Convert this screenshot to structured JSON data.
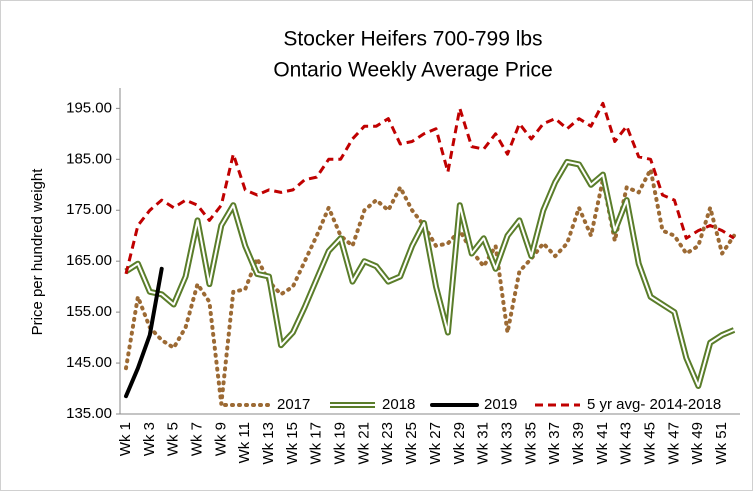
{
  "chart_data": {
    "type": "line",
    "title": "Stocker Heifers 700-799 lbs",
    "subtitle": "Ontario Weekly Average Price",
    "y_label": "Price per hundred weight",
    "categories": [
      "Wk 1",
      null,
      "Wk 3",
      null,
      "Wk 5",
      null,
      "Wk 7",
      null,
      "Wk 9",
      null,
      "Wk 11",
      null,
      "Wk 13",
      null,
      "Wk 15",
      null,
      "Wk 17",
      null,
      "Wk 19",
      null,
      "Wk 21",
      null,
      "Wk 23",
      null,
      "Wk 25",
      null,
      "Wk 27",
      null,
      "Wk 29",
      null,
      "Wk 31",
      null,
      "Wk 33",
      null,
      "Wk 35",
      null,
      "Wk 37",
      null,
      "Wk 39",
      null,
      "Wk 41",
      null,
      "Wk 43",
      null,
      "Wk 45",
      null,
      "Wk 47",
      null,
      "Wk 49",
      null,
      "Wk 51",
      null
    ],
    "series": [
      {
        "name": "2017",
        "color": "#9c6a34",
        "style": "dotted",
        "values": [
          144,
          158,
          152,
          149.5,
          148,
          152,
          160.5,
          157,
          137,
          159,
          159.5,
          165.5,
          161,
          158.5,
          160,
          165,
          170,
          175.5,
          170,
          168,
          175,
          177,
          175,
          179.5,
          175,
          172,
          168,
          168.5,
          171,
          167,
          164,
          168,
          151,
          163,
          165.5,
          168.5,
          166,
          168.5,
          175.5,
          170,
          181,
          169,
          179.5,
          178.5,
          183,
          171,
          170,
          166.5,
          168,
          175.5,
          166.5,
          170
        ]
      },
      {
        "name": "2018",
        "color": "#5a7d2a",
        "style": "double",
        "values": [
          163,
          164.5,
          159,
          158.5,
          156.5,
          162,
          173,
          160.5,
          172,
          176,
          168,
          162.5,
          162,
          148.5,
          151,
          156,
          161.5,
          167,
          169.5,
          161,
          165,
          164,
          161,
          162,
          168,
          172.5,
          160,
          151,
          176,
          166.5,
          169.5,
          163.5,
          170,
          173,
          166,
          175,
          180.5,
          184.5,
          184,
          180,
          182,
          171,
          177,
          164.5,
          158,
          156.5,
          155,
          146,
          140.5,
          149,
          150.5,
          151.5
        ]
      },
      {
        "name": "2019",
        "color": "#000000",
        "style": "solid",
        "values": [
          138.5,
          144,
          150.5,
          163.5,
          null,
          null,
          null,
          null,
          null,
          null,
          null,
          null,
          null,
          null,
          null,
          null,
          null,
          null,
          null,
          null,
          null,
          null,
          null,
          null,
          null,
          null,
          null,
          null,
          null,
          null,
          null,
          null,
          null,
          null,
          null,
          null,
          null,
          null,
          null,
          null,
          null,
          null,
          null,
          null,
          null,
          null,
          null,
          null,
          null,
          null,
          null,
          null
        ]
      },
      {
        "name": "5 yr avg- 2014-2018",
        "color": "#c00000",
        "style": "dashed",
        "values": [
          162.5,
          172,
          175,
          177,
          175.5,
          177,
          176,
          173,
          176,
          186,
          179,
          178,
          179,
          178.5,
          179,
          181,
          181.5,
          185,
          185,
          189,
          191.5,
          191.5,
          193,
          188,
          188.5,
          190,
          191,
          182.5,
          195,
          187.5,
          187,
          190,
          186,
          192,
          189,
          192,
          193,
          191,
          193,
          191.5,
          196,
          188.5,
          191.5,
          185.5,
          185,
          178,
          177,
          169.5,
          171,
          172,
          171,
          169.5
        ]
      }
    ],
    "ylim": [
      135,
      199
    ],
    "yticks": [
      {
        "value": 135,
        "label": "135.00"
      },
      {
        "value": 145,
        "label": "145.00"
      },
      {
        "value": 155,
        "label": "155.00"
      },
      {
        "value": 165,
        "label": "165.00"
      },
      {
        "value": 175,
        "label": "175.00"
      },
      {
        "value": 185,
        "label": "185.00"
      },
      {
        "value": 195,
        "label": "195.00"
      }
    ],
    "grid": false,
    "legend": "bottom"
  }
}
